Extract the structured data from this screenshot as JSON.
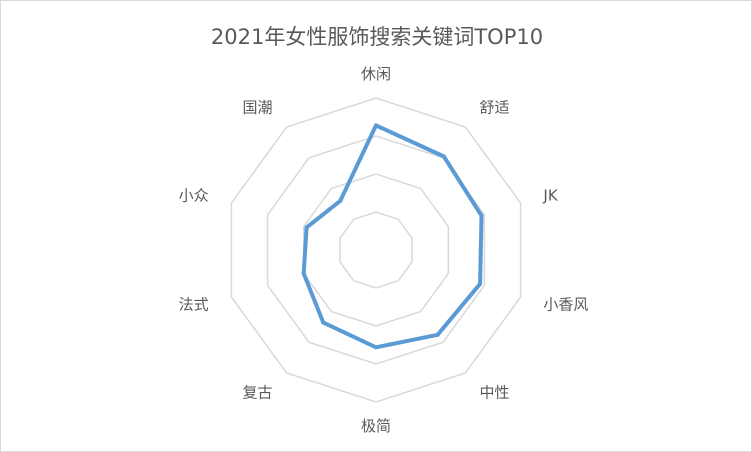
{
  "chart_data": {
    "type": "radar",
    "title": "2021年女性服饰搜索关键词TOP10",
    "categories": [
      "休闲",
      "舒适",
      "JK",
      "小香风",
      "中性",
      "极简",
      "复古",
      "法式",
      "小众",
      "国潮"
    ],
    "series": [
      {
        "values": [
          0.82,
          0.76,
          0.73,
          0.72,
          0.69,
          0.64,
          0.59,
          0.5,
          0.48,
          0.4
        ]
      }
    ],
    "rlim": [
      0,
      1
    ],
    "rings": 4,
    "grid": true,
    "legend": "none",
    "colors": {
      "series": "#5b9bd5",
      "grid": "#d9d9d9",
      "text": "#595959"
    }
  }
}
